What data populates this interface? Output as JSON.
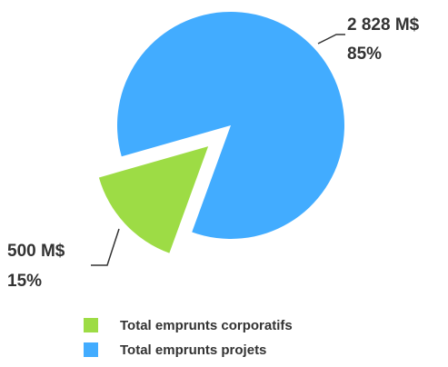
{
  "chart_data": {
    "type": "pie",
    "categories": [
      "Total emprunts corporatifs",
      "Total emprunts projets"
    ],
    "values": [
      500,
      2828
    ],
    "value_labels": [
      "500 M$",
      "2 828 M$"
    ],
    "percent_labels": [
      "15%",
      "85%"
    ],
    "colors": [
      "#9ddc45",
      "#42acff"
    ],
    "exploded": [
      true,
      false
    ],
    "legend": "bottom"
  }
}
